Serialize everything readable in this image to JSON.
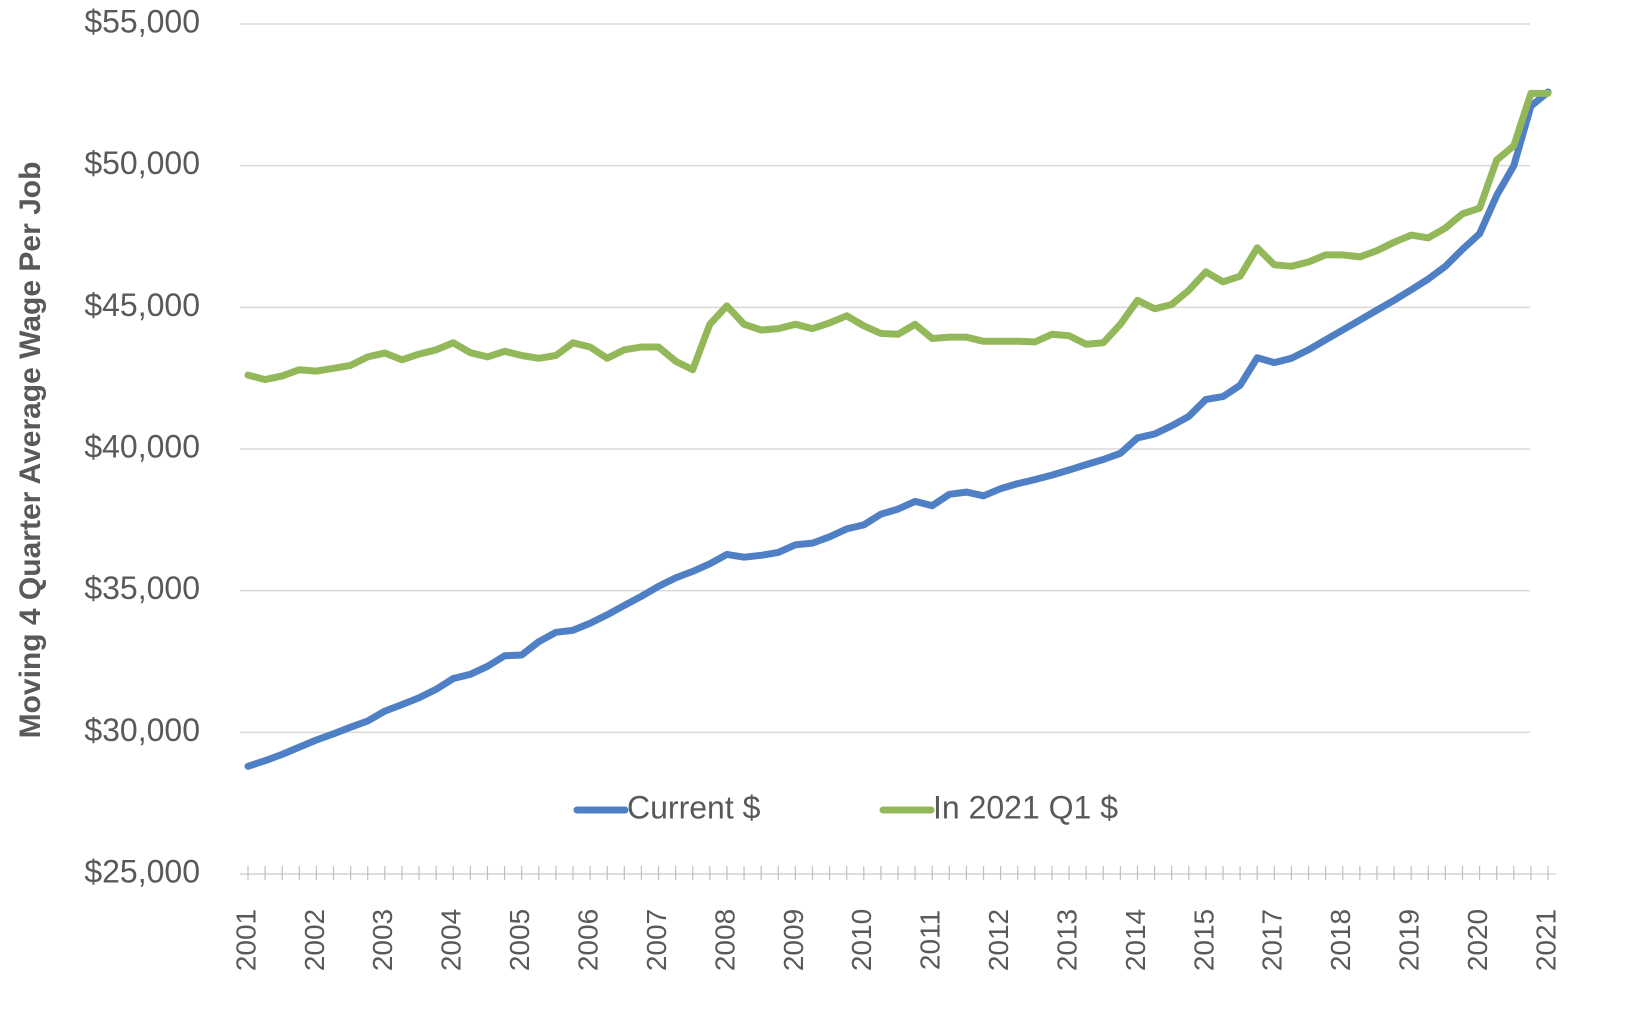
{
  "chart_data": {
    "type": "line",
    "y_label": "Moving 4 Quarter Average Wage Per Job",
    "categories": [
      "2001",
      null,
      null,
      null,
      "2002",
      null,
      null,
      null,
      "2003",
      null,
      null,
      null,
      "2004",
      null,
      null,
      null,
      "2005",
      null,
      null,
      null,
      "2006",
      null,
      null,
      null,
      "2007",
      null,
      null,
      null,
      "2008",
      null,
      null,
      null,
      "2009",
      null,
      null,
      null,
      "2010",
      null,
      null,
      null,
      "2011",
      null,
      null,
      null,
      "2012",
      null,
      null,
      null,
      "2013",
      null,
      null,
      null,
      "2014",
      null,
      null,
      null,
      "2015",
      null,
      null,
      null,
      "2017",
      null,
      null,
      null,
      "2018",
      null,
      null,
      null,
      "2019",
      null,
      null,
      null,
      "2020",
      null,
      null,
      null,
      "2021"
    ],
    "series": [
      {
        "name": "Current $",
        "color": "#4f7fc4",
        "values": [
          28800,
          29000,
          29220,
          29480,
          29730,
          29950,
          30180,
          30400,
          30750,
          30980,
          31220,
          31520,
          31900,
          32050,
          32330,
          32700,
          32730,
          33200,
          33530,
          33600,
          33850,
          34150,
          34480,
          34800,
          35150,
          35450,
          35680,
          35950,
          36280,
          36180,
          36250,
          36350,
          36620,
          36680,
          36900,
          37180,
          37320,
          37700,
          37880,
          38150,
          38000,
          38400,
          38480,
          38350,
          38600,
          38780,
          38920,
          39080,
          39260,
          39450,
          39630,
          39850,
          40390,
          40530,
          40820,
          41150,
          41750,
          41850,
          42250,
          43220,
          43050,
          43200,
          43500,
          43850,
          44200,
          44550,
          44900,
          45250,
          45620,
          46000,
          46450,
          47050,
          47600,
          48950,
          50000,
          52100,
          52600
        ]
      },
      {
        "name": "In 2021 Q1 $",
        "color": "#93b85a",
        "values": [
          42610,
          42450,
          42580,
          42800,
          42750,
          42850,
          42950,
          43250,
          43390,
          43150,
          43350,
          43500,
          43750,
          43400,
          43250,
          43450,
          43300,
          43200,
          43300,
          43750,
          43600,
          43200,
          43500,
          43600,
          43600,
          43100,
          42800,
          44400,
          45050,
          44400,
          44200,
          44250,
          44400,
          44250,
          44450,
          44700,
          44350,
          44080,
          44050,
          44400,
          43900,
          43950,
          43950,
          43800,
          43800,
          43800,
          43780,
          44050,
          44000,
          43700,
          43750,
          44400,
          45250,
          44950,
          45100,
          45600,
          46250,
          45900,
          46100,
          47100,
          46500,
          46450,
          46600,
          46850,
          46850,
          46780,
          47000,
          47300,
          47550,
          47450,
          47800,
          48300,
          48500,
          50200,
          50700,
          52550,
          52550
        ]
      }
    ],
    "ylim": [
      25000,
      55000
    ],
    "yticks": [
      {
        "value": 25000,
        "label": "$25,000"
      },
      {
        "value": 30000,
        "label": "$30,000"
      },
      {
        "value": 35000,
        "label": "$35,000"
      },
      {
        "value": 40000,
        "label": "$40,000"
      },
      {
        "value": 45000,
        "label": "$45,000"
      },
      {
        "value": 50000,
        "label": "$50,000"
      },
      {
        "value": 55000,
        "label": "$55,000"
      }
    ],
    "grid": true,
    "legend": "lower center"
  }
}
